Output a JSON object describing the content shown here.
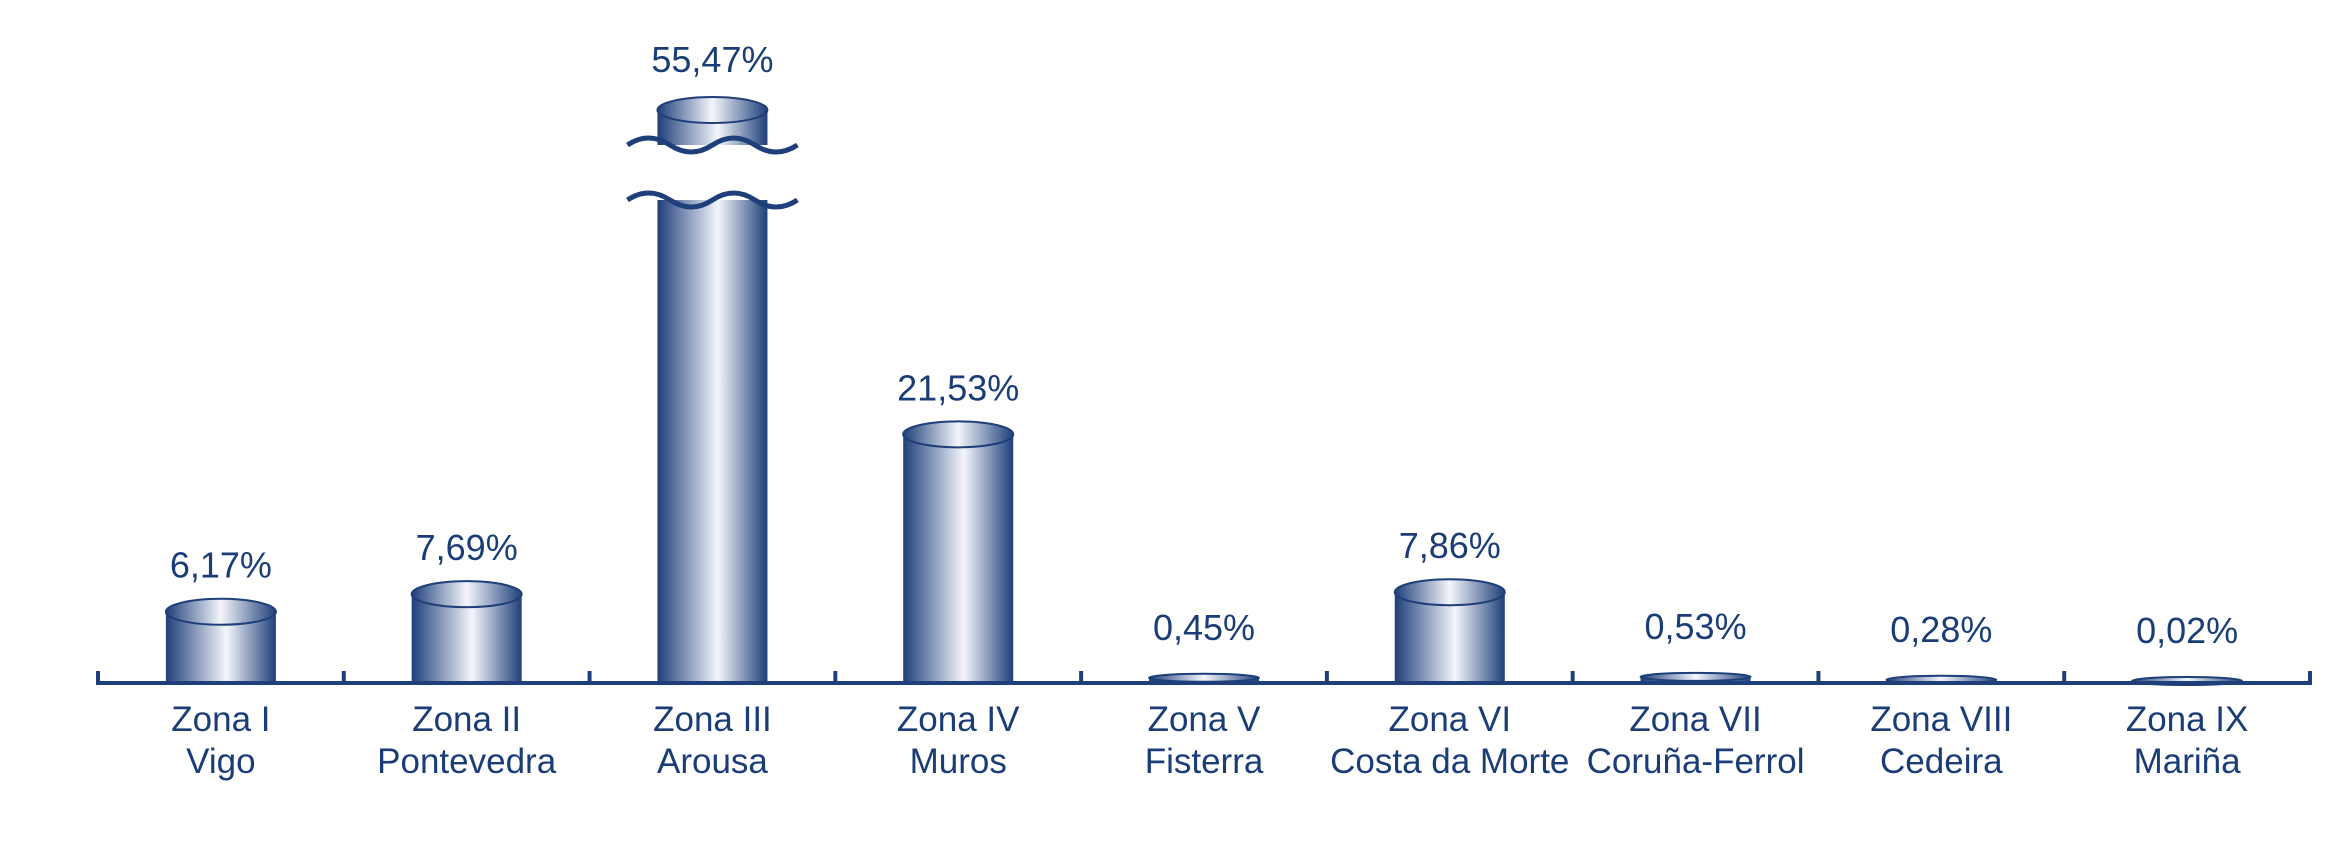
{
  "chart_data": {
    "type": "bar",
    "style": "cylinder",
    "categories": [
      [
        "Zona I",
        "Vigo"
      ],
      [
        "Zona II",
        "Pontevedra"
      ],
      [
        "Zona III",
        "Arousa"
      ],
      [
        "Zona IV",
        "Muros"
      ],
      [
        "Zona V",
        "Fisterra"
      ],
      [
        "Zona VI",
        "Costa da Morte"
      ],
      [
        "Zona VII",
        "Coruña-Ferrol"
      ],
      [
        "Zona VIII",
        "Cedeira"
      ],
      [
        "Zona IX",
        "Mariña"
      ]
    ],
    "values": [
      6.17,
      7.69,
      55.47,
      21.53,
      0.45,
      7.86,
      0.53,
      0.28,
      0.02
    ],
    "data_labels": [
      "6,17%",
      "7,69%",
      "55,47%",
      "21,53%",
      "0,45%",
      "7,86%",
      "0,53%",
      "0,28%",
      "0,02%"
    ],
    "axis_break_on": "Zona III",
    "title": "",
    "xlabel": "",
    "ylabel": "",
    "grid": false,
    "legend": "none",
    "colors": {
      "bar_dark": "#1f3f7a",
      "bar_light": "#f4f6fb",
      "axis": "#1f3f7a",
      "text": "#1a3d78"
    }
  }
}
